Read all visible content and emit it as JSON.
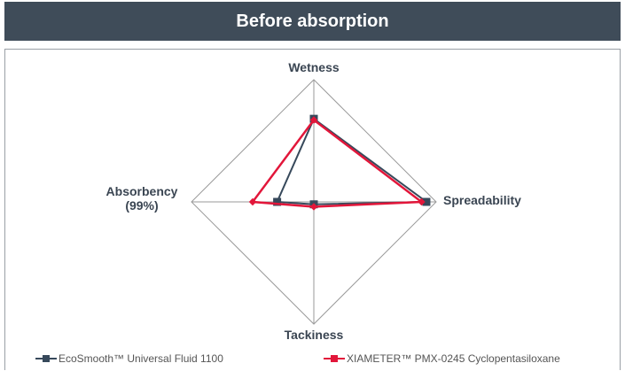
{
  "chart_data": {
    "type": "radar",
    "title": "Before absorption",
    "categories": [
      "Wetness",
      "Spreadability",
      "Tackiness",
      "Absorbency (99%)"
    ],
    "ylim": [
      0,
      5
    ],
    "series": [
      {
        "name": "EcoSmooth™ Universal Fluid 1100",
        "color": "#37495b",
        "values": [
          3.4,
          4.6,
          0.1,
          1.5
        ]
      },
      {
        "name": "XIAMETER™ PMX-0245 Cyclopentasiloxane",
        "color": "#e2163a",
        "values": [
          3.35,
          4.4,
          0.2,
          2.5
        ]
      }
    ]
  }
}
